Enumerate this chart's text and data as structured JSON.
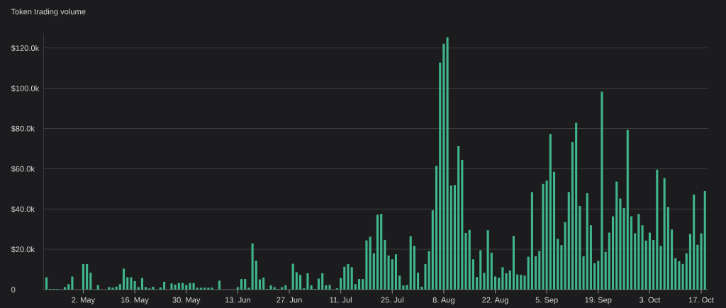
{
  "chart_data": {
    "type": "bar",
    "title": "Token trading volume",
    "categories": [
      null,
      null,
      null,
      null,
      null,
      null,
      null,
      null,
      null,
      null,
      "2. May",
      null,
      null,
      null,
      null,
      null,
      null,
      null,
      null,
      null,
      null,
      null,
      null,
      null,
      "16. May",
      null,
      null,
      null,
      null,
      null,
      null,
      null,
      null,
      null,
      null,
      null,
      null,
      null,
      "30. May",
      null,
      null,
      null,
      null,
      null,
      null,
      null,
      null,
      null,
      null,
      null,
      null,
      null,
      "13. Jun",
      null,
      null,
      null,
      null,
      null,
      null,
      null,
      null,
      null,
      null,
      null,
      null,
      null,
      "27. Jun",
      null,
      null,
      null,
      null,
      null,
      null,
      null,
      null,
      null,
      null,
      null,
      null,
      null,
      "11. Jul",
      null,
      null,
      null,
      null,
      null,
      null,
      null,
      null,
      null,
      null,
      null,
      null,
      null,
      "25. Jul",
      null,
      null,
      null,
      null,
      null,
      null,
      null,
      null,
      null,
      null,
      null,
      null,
      null,
      "8. Aug",
      null,
      null,
      null,
      null,
      null,
      null,
      null,
      null,
      null,
      null,
      null,
      null,
      null,
      "22. Aug",
      null,
      null,
      null,
      null,
      null,
      null,
      null,
      null,
      null,
      null,
      null,
      null,
      null,
      "5. Sep",
      null,
      null,
      null,
      null,
      null,
      null,
      null,
      null,
      null,
      null,
      null,
      null,
      null,
      "19. Sep",
      null,
      null,
      null,
      null,
      null,
      null,
      null,
      null,
      null,
      null,
      null,
      null,
      null,
      "3. Oct",
      null,
      null,
      null,
      null,
      null,
      null,
      null,
      null,
      null,
      null,
      null,
      null,
      null,
      "17. Oct",
      null
    ],
    "series": [
      {
        "color": "#3fb68b",
        "values": [
          6.1,
          0.3,
          0.3,
          0.3,
          0,
          1.2,
          2.7,
          6.5,
          0,
          0,
          12.6,
          12.6,
          8.3,
          0,
          2.2,
          0,
          0,
          1.2,
          0.9,
          1.5,
          2.7,
          10.3,
          6.1,
          6.1,
          4.2,
          1.2,
          5.7,
          1.2,
          0.6,
          1.4,
          0,
          1.0,
          3.8,
          0,
          3.0,
          2.4,
          3.2,
          3.2,
          2.2,
          3.2,
          3.2,
          0.9,
          0.9,
          0.9,
          0.9,
          0.9,
          0,
          4.4,
          0,
          0,
          0,
          0,
          1.2,
          5.2,
          5.2,
          0.9,
          22.9,
          14.3,
          5.0,
          5.9,
          0.3,
          2.1,
          1.2,
          0.3,
          1.2,
          2.1,
          0,
          12.8,
          8.6,
          7.3,
          0.6,
          8.1,
          2.1,
          0.3,
          5.4,
          8.1,
          2.1,
          2.3,
          0,
          0.6,
          5.7,
          11.3,
          12.6,
          11.1,
          2.7,
          5.2,
          5.2,
          24.4,
          26.2,
          18.0,
          37.2,
          37.6,
          24.6,
          16.9,
          15.0,
          17.5,
          6.9,
          2.0,
          2.2,
          26.5,
          21.7,
          8.4,
          1.4,
          12.6,
          19.1,
          39.4,
          61.4,
          112.7,
          122.1,
          125.3,
          51.7,
          51.9,
          71.4,
          64.3,
          28.1,
          29.6,
          15.0,
          6.2,
          19.5,
          8.3,
          29.5,
          18.3,
          6.5,
          5.9,
          11.1,
          8.1,
          9.4,
          26.6,
          7.5,
          7.3,
          6.9,
          16.3,
          48.4,
          16.5,
          19.1,
          52.5,
          54.1,
          77.3,
          58.4,
          25.2,
          22.0,
          33.5,
          48.4,
          73.2,
          82.8,
          41.5,
          16.5,
          47.9,
          31.9,
          13.1,
          14.2,
          98.3,
          18.7,
          28.3,
          36.4,
          53.6,
          45.2,
          40.5,
          79.3,
          36.4,
          27.9,
          37.5,
          31.9,
          24.3,
          28.3,
          24.6,
          59.5,
          21.7,
          55.4,
          41.0,
          29.8,
          15.6,
          14.0,
          12.7,
          18.0,
          27.7,
          47.2,
          22.2,
          27.9,
          48.9
        ]
      }
    ],
    "ylim": [
      0,
      127
    ],
    "yticks": [
      0,
      {
        "value": 20,
        "label": "$20.0k"
      },
      {
        "value": 40,
        "label": "$40.0k"
      },
      {
        "value": 60,
        "label": "$60.0k"
      },
      {
        "value": 80,
        "label": "$80.0k"
      },
      {
        "value": 100,
        "label": "$100.0k"
      },
      {
        "value": 120,
        "label": "$120.0k"
      }
    ],
    "grid": "y",
    "legend": false
  }
}
